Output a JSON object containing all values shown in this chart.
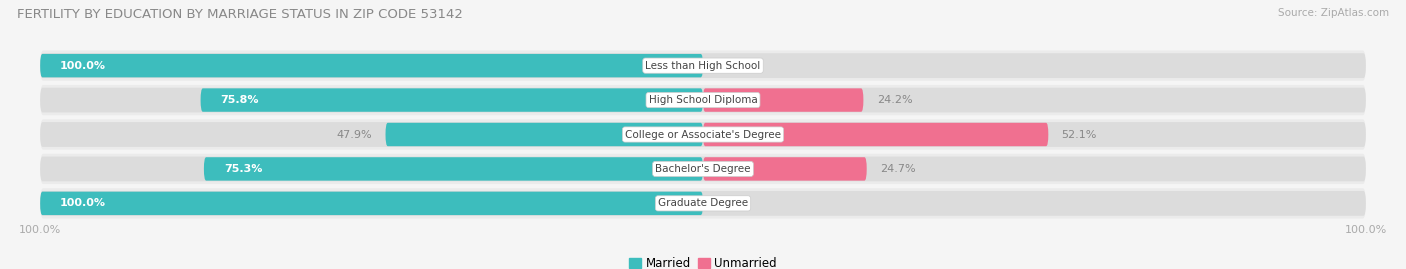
{
  "title": "FERTILITY BY EDUCATION BY MARRIAGE STATUS IN ZIP CODE 53142",
  "source": "Source: ZipAtlas.com",
  "categories": [
    "Less than High School",
    "High School Diploma",
    "College or Associate's Degree",
    "Bachelor's Degree",
    "Graduate Degree"
  ],
  "married": [
    100.0,
    75.8,
    47.9,
    75.3,
    100.0
  ],
  "unmarried": [
    0.0,
    24.2,
    52.1,
    24.7,
    0.0
  ],
  "married_color": "#3dbdbd",
  "unmarried_color": "#f07090",
  "bg_track_color": "#dcdcdc",
  "row_bg_color": "#ebebeb",
  "label_box_color": "#ffffff",
  "label_box_edge": "#cccccc",
  "text_inside_color": "#ffffff",
  "text_outside_color": "#888888",
  "title_color": "#888888",
  "source_color": "#aaaaaa",
  "legend_married": "Married",
  "legend_unmarried": "Unmarried",
  "fig_bg": "#f5f5f5"
}
